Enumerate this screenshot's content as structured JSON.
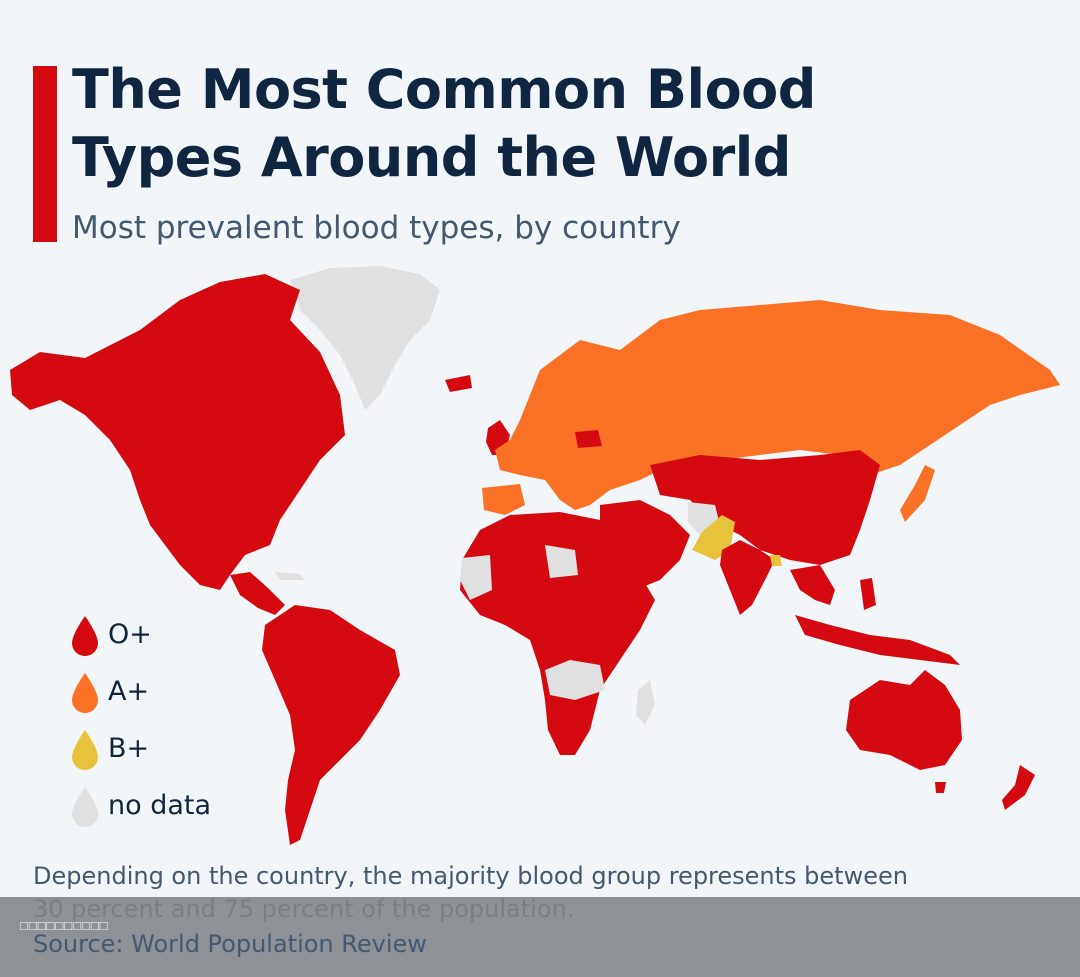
{
  "header": {
    "title": "The Most Common Blood Types Around the World",
    "subtitle": "Most prevalent blood types, by country"
  },
  "legend": [
    {
      "label": "O+",
      "color": "#d50a11"
    },
    {
      "label": "A+",
      "color": "#fb7126"
    },
    {
      "label": "B+",
      "color": "#e8c23a"
    },
    {
      "label": "no data",
      "color": "#e0e0e0"
    }
  ],
  "colors": {
    "O+": "#d50a11",
    "A+": "#fb7126",
    "B+": "#e8c23a",
    "no_data": "#e0e0e0",
    "accent": "#d50a11"
  },
  "footer": {
    "note": "Depending on the country, the majority blood group represents between 30 percent and 75 percent of the population.",
    "source": "Source: World Population Review",
    "overlay_text": "□□□□□□□□□□"
  }
}
